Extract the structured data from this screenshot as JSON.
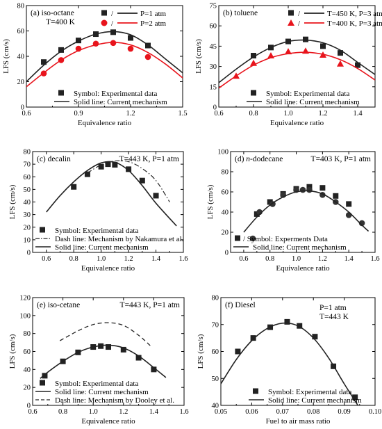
{
  "chart_data": [
    {
      "panel": "a",
      "type": "line",
      "title": "(a) iso-octane",
      "subtitle": "T=400 K",
      "xlabel": "Equivalence ratio",
      "ylabel": "LFS (cm/s)",
      "xlim": [
        0.6,
        1.5
      ],
      "ylim": [
        0,
        80
      ],
      "xticks": [
        0.6,
        0.9,
        1.2,
        1.5
      ],
      "yticks": [
        0,
        20,
        40,
        60,
        80
      ],
      "legend_top": [
        {
          "slash": "/",
          "label": "P=1 atm",
          "color": "#222222",
          "marker": "square"
        },
        {
          "slash": "/",
          "label": "P=2 atm",
          "color": "#e8141c",
          "marker": "circle"
        }
      ],
      "legend_bottom": [
        {
          "label": "Symbol: Experimental data",
          "kind": "marker"
        },
        {
          "label": "Solid line: Current mechanism",
          "kind": "line"
        }
      ],
      "series": [
        {
          "color": "#222222",
          "marker": "square",
          "x": [
            0.7,
            0.8,
            0.9,
            1.0,
            1.1,
            1.2,
            1.3
          ],
          "y": [
            35.5,
            45,
            52.5,
            57.5,
            59,
            54.5,
            48.5
          ],
          "curve_x": [
            0.6,
            0.7,
            0.8,
            0.9,
            1.0,
            1.1,
            1.2,
            1.3,
            1.4,
            1.5
          ],
          "curve_y": [
            20,
            33,
            44,
            52,
            57.5,
            59.5,
            57,
            49,
            38,
            27
          ]
        },
        {
          "color": "#e8141c",
          "marker": "circle",
          "x": [
            0.7,
            0.8,
            0.9,
            1.0,
            1.1,
            1.2,
            1.3
          ],
          "y": [
            26.5,
            37,
            46,
            50,
            50.5,
            46,
            39.5
          ],
          "curve_x": [
            0.6,
            0.7,
            0.8,
            0.9,
            1.0,
            1.1,
            1.2,
            1.3,
            1.4,
            1.5
          ],
          "curve_y": [
            16,
            27,
            37,
            44.5,
            49,
            51,
            49,
            43,
            34,
            23
          ]
        }
      ]
    },
    {
      "panel": "b",
      "type": "line",
      "title": "(b) toluene",
      "xlabel": "Equivalence ratio",
      "ylabel": "LFS (cm/s)",
      "xlim": [
        0.6,
        1.5
      ],
      "ylim": [
        0,
        75
      ],
      "xticks": [
        0.6,
        0.8,
        1.0,
        1.2,
        1.4
      ],
      "yticks": [
        0,
        15,
        30,
        45,
        60,
        75
      ],
      "legend_top": [
        {
          "slash": "/",
          "label": "T=450 K, P=3 atm",
          "color": "#222222",
          "marker": "square"
        },
        {
          "slash": "/",
          "label": "T=400 K, P=3 atm",
          "color": "#e8141c",
          "marker": "triangle"
        }
      ],
      "legend_bottom": [
        {
          "label": "Symbol: Experimental data",
          "kind": "marker"
        },
        {
          "label": "Solid line: Current mechanism",
          "kind": "line"
        }
      ],
      "series": [
        {
          "color": "#222222",
          "marker": "square",
          "x": [
            0.8,
            0.9,
            1.0,
            1.1,
            1.2,
            1.3,
            1.4
          ],
          "y": [
            38,
            44,
            48.5,
            50,
            45,
            40,
            31
          ],
          "curve_x": [
            0.6,
            0.7,
            0.8,
            0.9,
            1.0,
            1.1,
            1.2,
            1.3,
            1.4,
            1.5
          ],
          "curve_y": [
            18,
            28,
            37,
            44,
            48.5,
            49.5,
            47.5,
            42,
            33,
            24
          ]
        },
        {
          "color": "#e8141c",
          "marker": "triangle",
          "x": [
            0.7,
            0.8,
            0.9,
            1.0,
            1.1,
            1.2,
            1.3
          ],
          "y": [
            23,
            32.5,
            38,
            41,
            41.5,
            38.5,
            32
          ],
          "curve_x": [
            0.6,
            0.7,
            0.8,
            0.9,
            1.0,
            1.1,
            1.2,
            1.3,
            1.4,
            1.5
          ],
          "curve_y": [
            14,
            23,
            31,
            36.5,
            39.5,
            40.5,
            39,
            35,
            28.5,
            20
          ]
        }
      ]
    },
    {
      "panel": "c",
      "type": "line",
      "title": "(c) decalin",
      "subtitle": "T=443 K, P=1 atm",
      "xlabel": "Equivalence ratio",
      "ylabel": "LFS (cm/s)",
      "xlim": [
        0.5,
        1.6
      ],
      "ylim": [
        0,
        80
      ],
      "xticks": [
        0.6,
        0.8,
        1.0,
        1.2,
        1.4,
        1.6
      ],
      "yticks": [
        0,
        10,
        20,
        30,
        40,
        50,
        60,
        70,
        80
      ],
      "legend_bottom": [
        {
          "label": "Symbol: Experimental data",
          "kind": "marker"
        },
        {
          "label": "Dash line: Mechanism by Nakamura et al.",
          "kind": "dashdot"
        },
        {
          "label": "Solid line: Current mechanism",
          "kind": "line"
        }
      ],
      "series": [
        {
          "color": "#222222",
          "marker": "square",
          "x": [
            0.8,
            0.9,
            1.0,
            1.05,
            1.1,
            1.2,
            1.3,
            1.4
          ],
          "y": [
            52,
            62,
            68,
            70,
            69.5,
            66,
            57,
            45
          ]
        },
        {
          "color": "#222222",
          "kind": "line",
          "curve_x": [
            0.6,
            0.7,
            0.8,
            0.9,
            1.0,
            1.1,
            1.2,
            1.3,
            1.4,
            1.55
          ],
          "curve_y": [
            32,
            45,
            56,
            65,
            71,
            71.5,
            65,
            53,
            39,
            21
          ]
        },
        {
          "color": "#222222",
          "kind": "dashdot",
          "curve_x": [
            0.9,
            1.0,
            1.1,
            1.2,
            1.3,
            1.4,
            1.5
          ],
          "curve_y": [
            63,
            69.5,
            72.5,
            72,
            66.5,
            57,
            40
          ]
        }
      ]
    },
    {
      "panel": "d",
      "type": "line",
      "title_prefix": "(d) ",
      "title_italic": "n",
      "title_rest": "-dodecane",
      "subtitle": "T=403 K, P=1 atm",
      "xlabel": "Equivalence ratio",
      "ylabel": "LFS (cm/s)",
      "xlim": [
        0.5,
        1.6
      ],
      "ylim": [
        0,
        100
      ],
      "xticks": [
        0.6,
        0.8,
        1.0,
        1.2,
        1.4,
        1.6
      ],
      "yticks": [
        0,
        20,
        40,
        60,
        80,
        100
      ],
      "legend_bottom": [
        {
          "label": "/ Symbol: Experments Data",
          "kind": "square-circle"
        },
        {
          "label": "Solid line: Current mechanism",
          "kind": "line"
        }
      ],
      "series": [
        {
          "color": "#222222",
          "marker": "square",
          "x": [
            0.7,
            0.8,
            0.9,
            1.0,
            1.1,
            1.2,
            1.3,
            1.4
          ],
          "y": [
            38,
            50,
            58,
            63,
            65,
            64,
            56,
            48
          ]
        },
        {
          "color": "#333333",
          "marker": "circle",
          "x": [
            0.72,
            0.82,
            0.9,
            1.0,
            1.05,
            1.1,
            1.2,
            1.3,
            1.4,
            1.5
          ],
          "y": [
            40,
            48,
            57,
            62,
            62,
            62,
            57,
            50,
            37,
            29
          ]
        },
        {
          "color": "#222222",
          "kind": "line",
          "curve_x": [
            0.6,
            0.7,
            0.8,
            0.9,
            1.0,
            1.1,
            1.2,
            1.3,
            1.4,
            1.5,
            1.55
          ],
          "curve_y": [
            20,
            35,
            47,
            55,
            60,
            61,
            58,
            50,
            40,
            27,
            21
          ]
        }
      ]
    },
    {
      "panel": "e",
      "type": "line",
      "title": "(e) iso-cetane",
      "subtitle": "T=443 K, P=1 atm",
      "xlabel": "Equivalence ratio",
      "ylabel": "LFS (cm/s)",
      "xlim": [
        0.6,
        1.6
      ],
      "ylim": [
        0,
        120
      ],
      "xticks": [
        0.6,
        0.8,
        1.0,
        1.2,
        1.4,
        1.6
      ],
      "yticks": [
        0,
        20,
        40,
        60,
        80,
        100,
        120
      ],
      "legend_bottom": [
        {
          "label": "Symbol: Experimental data",
          "kind": "marker"
        },
        {
          "label": "Solid line: Current mechanism",
          "kind": "line"
        },
        {
          "label": "Dash line:  Mechanism by Dooley et al.",
          "kind": "dash"
        }
      ],
      "series": [
        {
          "color": "#222222",
          "marker": "square",
          "x": [
            0.68,
            0.8,
            0.9,
            1.0,
            1.05,
            1.1,
            1.2,
            1.3,
            1.4
          ],
          "y": [
            33,
            49,
            59,
            65,
            66,
            65,
            62,
            53,
            40
          ]
        },
        {
          "color": "#222222",
          "kind": "line",
          "curve_x": [
            0.65,
            0.7,
            0.8,
            0.9,
            1.0,
            1.1,
            1.2,
            1.3,
            1.4,
            1.48
          ],
          "curve_y": [
            30,
            37,
            49,
            59,
            65,
            67,
            64,
            55,
            42,
            31
          ]
        },
        {
          "color": "#222222",
          "kind": "dash",
          "curve_x": [
            0.78,
            0.9,
            1.0,
            1.1,
            1.2,
            1.3,
            1.38
          ],
          "curve_y": [
            72,
            83,
            90,
            92,
            89,
            78,
            66
          ]
        }
      ]
    },
    {
      "panel": "f",
      "type": "line",
      "title": "(f) Diesel",
      "subtitle": "P=1 atm",
      "subtitle2": "T=443 K",
      "xlabel": "Fuel to air mass ratio",
      "ylabel": "LFS (cm/s)",
      "xlim": [
        0.05,
        0.1
      ],
      "ylim": [
        40,
        80
      ],
      "xticks": [
        0.05,
        0.06,
        0.07,
        0.08,
        0.09,
        0.1
      ],
      "yticks": [
        40,
        50,
        60,
        70,
        80
      ],
      "legend_bottom": [
        {
          "label": "Symbol: Experimental data",
          "kind": "marker"
        },
        {
          "label": "Solid line: Current mechanism",
          "kind": "line"
        }
      ],
      "series": [
        {
          "color": "#222222",
          "marker": "square",
          "x": [
            0.0555,
            0.0605,
            0.066,
            0.0715,
            0.0755,
            0.0805,
            0.0865,
            0.0935
          ],
          "y": [
            60,
            65,
            69,
            71,
            69.5,
            65.5,
            54.5,
            43
          ]
        },
        {
          "color": "#222222",
          "kind": "line",
          "curve_x": [
            0.05,
            0.055,
            0.06,
            0.065,
            0.07,
            0.075,
            0.08,
            0.085,
            0.09,
            0.095
          ],
          "curve_y": [
            48,
            57,
            64,
            68.5,
            70.5,
            69.5,
            65,
            57.5,
            48,
            39
          ]
        }
      ]
    }
  ]
}
